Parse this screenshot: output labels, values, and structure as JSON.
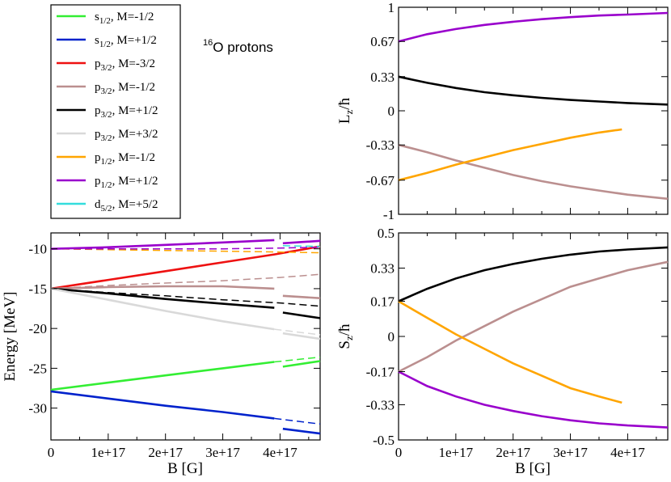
{
  "figure_note": {
    "superscript": "16",
    "text": "O protons"
  },
  "colors": {
    "s12_m12": "#33ee33",
    "s12_p12": "#0022cc",
    "p32_m32": "#ee1111",
    "p32_m12": "#bb8f8f",
    "p32_p12": "#000000",
    "p32_p32": "#d9d9d9",
    "p12_m12": "#ffa500",
    "p12_p12": "#9900cc",
    "d52_p52": "#33dddd"
  },
  "legend": [
    {
      "key": "s12_m12",
      "orbital": "s",
      "sub": "1/2",
      "suffix": ", M=-1/2"
    },
    {
      "key": "s12_p12",
      "orbital": "s",
      "sub": "1/2",
      "suffix": ", M=+1/2"
    },
    {
      "key": "p32_m32",
      "orbital": "p",
      "sub": "3/2",
      "suffix": ", M=-3/2"
    },
    {
      "key": "p32_m12",
      "orbital": "p",
      "sub": "3/2",
      "suffix": ", M=-1/2"
    },
    {
      "key": "p32_p12",
      "orbital": "p",
      "sub": "3/2",
      "suffix": ", M=+1/2"
    },
    {
      "key": "p32_p32",
      "orbital": "p",
      "sub": "3/2",
      "suffix": ", M=+3/2"
    },
    {
      "key": "p12_m12",
      "orbital": "p",
      "sub": "1/2",
      "suffix": ", M=-1/2"
    },
    {
      "key": "p12_p12",
      "orbital": "p",
      "sub": "1/2",
      "suffix": ", M=+1/2"
    },
    {
      "key": "d52_p52",
      "orbital": "d",
      "sub": "5/2",
      "suffix": ", M=+5/2"
    }
  ],
  "chart_data": [
    {
      "id": "energy",
      "type": "line",
      "title": "",
      "xlabel": "B [G]",
      "ylabel": "Energy [MeV]",
      "xlim": [
        0,
        4.7e+17
      ],
      "ylim": [
        -34,
        -8
      ],
      "x_ticks": [
        0,
        1e+17,
        2e+17,
        3e+17,
        4e+17
      ],
      "x_tick_labels": [
        "0",
        "1e+17",
        "2e+17",
        "3e+17",
        "4e+17"
      ],
      "y_ticks": [
        -30,
        -25,
        -20,
        -15,
        -10
      ],
      "y_tick_labels": [
        "-30",
        "-25",
        "-20",
        "-15",
        "-10"
      ],
      "series": [
        {
          "key": "s12_m12",
          "style": "solid",
          "x": [
            0,
            1e+17,
            2e+17,
            3e+17,
            3.9e+17
          ],
          "y": [
            -27.7,
            -26.8,
            -25.9,
            -25.0,
            -24.2
          ]
        },
        {
          "key": "s12_m12",
          "style": "solid",
          "x": [
            4.05e+17,
            4.7e+17
          ],
          "y": [
            -24.8,
            -24.1
          ]
        },
        {
          "key": "s12_m12",
          "style": "dashed",
          "x": [
            3.9e+17,
            4.7e+17
          ],
          "y": [
            -24.2,
            -23.6
          ]
        },
        {
          "key": "s12_p12",
          "style": "solid",
          "x": [
            0,
            1e+17,
            2e+17,
            3e+17,
            3.9e+17
          ],
          "y": [
            -27.9,
            -28.8,
            -29.7,
            -30.5,
            -31.3
          ]
        },
        {
          "key": "s12_p12",
          "style": "solid",
          "x": [
            4.05e+17,
            4.7e+17
          ],
          "y": [
            -32.6,
            -33.2
          ]
        },
        {
          "key": "s12_p12",
          "style": "dashed",
          "x": [
            3.9e+17,
            4.7e+17
          ],
          "y": [
            -31.3,
            -32.0
          ]
        },
        {
          "key": "p32_m32",
          "style": "solid",
          "x": [
            0,
            1e+17,
            2e+17,
            3e+17,
            3.9e+17,
            4.7e+17
          ],
          "y": [
            -15.0,
            -13.9,
            -12.8,
            -11.7,
            -10.7,
            -9.7
          ]
        },
        {
          "key": "p32_m12",
          "style": "solid",
          "x": [
            0,
            1e+17,
            2e+17,
            3e+17,
            3.9e+17
          ],
          "y": [
            -15.0,
            -14.8,
            -14.7,
            -14.7,
            -15.0
          ]
        },
        {
          "key": "p32_m12",
          "style": "solid",
          "x": [
            4.05e+17,
            4.7e+17
          ],
          "y": [
            -15.9,
            -16.2
          ]
        },
        {
          "key": "p32_m12",
          "style": "dashed",
          "x": [
            0,
            1e+17,
            2e+17,
            3e+17,
            4e+17,
            4.7e+17
          ],
          "y": [
            -15.0,
            -14.6,
            -14.3,
            -14.0,
            -13.6,
            -13.2
          ]
        },
        {
          "key": "p32_p12",
          "style": "solid",
          "x": [
            0,
            1e+17,
            2e+17,
            3e+17,
            3.9e+17
          ],
          "y": [
            -15.0,
            -15.6,
            -16.3,
            -16.9,
            -17.4
          ]
        },
        {
          "key": "p32_p12",
          "style": "solid",
          "x": [
            4.05e+17,
            4.7e+17
          ],
          "y": [
            -18.0,
            -18.7
          ]
        },
        {
          "key": "p32_p12",
          "style": "dashed",
          "x": [
            0,
            1e+17,
            2e+17,
            3e+17,
            4e+17,
            4.7e+17
          ],
          "y": [
            -15.0,
            -15.5,
            -15.9,
            -16.4,
            -16.8,
            -17.2
          ]
        },
        {
          "key": "p32_p32",
          "style": "solid",
          "x": [
            0,
            1e+17,
            2e+17,
            3e+17,
            3.9e+17
          ],
          "y": [
            -15.0,
            -16.4,
            -17.8,
            -19.1,
            -20.1
          ]
        },
        {
          "key": "p32_p32",
          "style": "solid",
          "x": [
            4.05e+17,
            4.7e+17
          ],
          "y": [
            -20.6,
            -21.3
          ]
        },
        {
          "key": "p32_p32",
          "style": "dashed",
          "x": [
            3.9e+17,
            4.7e+17
          ],
          "y": [
            -20.1,
            -20.8
          ]
        },
        {
          "key": "p12_m12",
          "style": "dashed",
          "x": [
            0,
            1e+17,
            2e+17,
            3e+17,
            4e+17,
            4.7e+17
          ],
          "y": [
            -10.0,
            -10.1,
            -10.2,
            -10.3,
            -10.4,
            -10.5
          ]
        },
        {
          "key": "p12_p12",
          "style": "solid",
          "x": [
            0,
            1e+17,
            2e+17,
            3e+17,
            3.9e+17
          ],
          "y": [
            -10.0,
            -9.8,
            -9.5,
            -9.2,
            -8.9
          ]
        },
        {
          "key": "p12_p12",
          "style": "solid",
          "x": [
            4.05e+17,
            4.7e+17
          ],
          "y": [
            -9.3,
            -9.0
          ]
        },
        {
          "key": "p12_p12",
          "style": "dashed",
          "x": [
            0,
            1e+17,
            2e+17,
            3e+17,
            4e+17,
            4.7e+17
          ],
          "y": [
            -10.0,
            -10.0,
            -10.0,
            -10.0,
            -9.9,
            -9.8
          ]
        },
        {
          "key": "d52_p52",
          "style": "dashed",
          "x": [
            4.05e+17,
            4.7e+17
          ],
          "y": [
            -9.6,
            -9.7
          ]
        }
      ]
    },
    {
      "id": "lz",
      "type": "line",
      "title": "",
      "xlabel": "",
      "ylabel": "L",
      "ylabel_sub": "z",
      "ylabel_suffix": "/ħ",
      "xlim": [
        0,
        4.7e+17
      ],
      "ylim": [
        -1,
        1
      ],
      "x_ticks": [
        0,
        1e+17,
        2e+17,
        3e+17,
        4e+17
      ],
      "x_tick_labels": [
        "",
        "",
        "",
        "",
        ""
      ],
      "y_ticks": [
        -1,
        -0.67,
        -0.33,
        0,
        0.33,
        0.67,
        1
      ],
      "y_tick_labels": [
        "-1",
        "-0.67",
        "-0.33",
        "0",
        "0.33",
        "0.67",
        "1"
      ],
      "series": [
        {
          "key": "p12_p12",
          "style": "solid",
          "x": [
            0,
            5e+16,
            1e+17,
            1.5e+17,
            2e+17,
            2.5e+17,
            3e+17,
            3.5e+17,
            4e+17,
            4.7e+17
          ],
          "y": [
            0.67,
            0.74,
            0.79,
            0.83,
            0.86,
            0.885,
            0.905,
            0.92,
            0.93,
            0.945
          ]
        },
        {
          "key": "p32_p12",
          "style": "solid",
          "x": [
            0,
            5e+16,
            1e+17,
            1.5e+17,
            2e+17,
            2.5e+17,
            3e+17,
            3.5e+17,
            4e+17,
            4.7e+17
          ],
          "y": [
            0.33,
            0.27,
            0.22,
            0.18,
            0.15,
            0.125,
            0.105,
            0.09,
            0.075,
            0.06
          ]
        },
        {
          "key": "p32_m12",
          "style": "solid",
          "x": [
            0,
            5e+16,
            1e+17,
            1.5e+17,
            2e+17,
            2.5e+17,
            3e+17,
            3.5e+17,
            4e+17,
            4.7e+17
          ],
          "y": [
            -0.33,
            -0.4,
            -0.48,
            -0.55,
            -0.62,
            -0.68,
            -0.73,
            -0.77,
            -0.81,
            -0.85
          ]
        },
        {
          "key": "p12_m12",
          "style": "solid",
          "x": [
            0,
            5e+16,
            1e+17,
            1.5e+17,
            2e+17,
            2.5e+17,
            3e+17,
            3.5e+17,
            3.9e+17
          ],
          "y": [
            -0.67,
            -0.6,
            -0.52,
            -0.45,
            -0.38,
            -0.32,
            -0.26,
            -0.21,
            -0.18
          ]
        }
      ]
    },
    {
      "id": "sz",
      "type": "line",
      "title": "",
      "xlabel": "B [G]",
      "ylabel": "S",
      "ylabel_sub": "z",
      "ylabel_suffix": "/ħ",
      "xlim": [
        0,
        4.7e+17
      ],
      "ylim": [
        -0.5,
        0.5
      ],
      "x_ticks": [
        0,
        1e+17,
        2e+17,
        3e+17,
        4e+17
      ],
      "x_tick_labels": [
        "0",
        "1e+17",
        "2e+17",
        "3e+17",
        "4e+17"
      ],
      "y_ticks": [
        -0.5,
        -0.33,
        -0.17,
        0,
        0.17,
        0.33,
        0.5
      ],
      "y_tick_labels": [
        "-0.5",
        "-0.33",
        "-0.17",
        "0",
        "0.17",
        "0.33",
        "0.5"
      ],
      "series": [
        {
          "key": "p32_p12",
          "style": "solid",
          "x": [
            0,
            5e+16,
            1e+17,
            1.5e+17,
            2e+17,
            2.5e+17,
            3e+17,
            3.5e+17,
            4e+17,
            4.7e+17
          ],
          "y": [
            0.17,
            0.23,
            0.28,
            0.32,
            0.35,
            0.375,
            0.395,
            0.41,
            0.42,
            0.43
          ]
        },
        {
          "key": "p32_m12",
          "style": "solid",
          "x": [
            0,
            5e+16,
            1e+17,
            1.5e+17,
            2e+17,
            2.5e+17,
            3e+17,
            3.5e+17,
            4e+17,
            4.7e+17
          ],
          "y": [
            -0.17,
            -0.1,
            -0.02,
            0.05,
            0.12,
            0.18,
            0.24,
            0.28,
            0.32,
            0.36
          ]
        },
        {
          "key": "p12_m12",
          "style": "solid",
          "x": [
            0,
            5e+16,
            1e+17,
            1.5e+17,
            2e+17,
            2.5e+17,
            3e+17,
            3.5e+17,
            3.9e+17
          ],
          "y": [
            0.17,
            0.09,
            0.01,
            -0.06,
            -0.13,
            -0.19,
            -0.25,
            -0.29,
            -0.32
          ]
        },
        {
          "key": "p12_p12",
          "style": "solid",
          "x": [
            0,
            5e+16,
            1e+17,
            1.5e+17,
            2e+17,
            2.5e+17,
            3e+17,
            3.5e+17,
            4e+17,
            4.7e+17
          ],
          "y": [
            -0.17,
            -0.24,
            -0.29,
            -0.33,
            -0.36,
            -0.385,
            -0.405,
            -0.42,
            -0.43,
            -0.44
          ]
        }
      ]
    }
  ]
}
